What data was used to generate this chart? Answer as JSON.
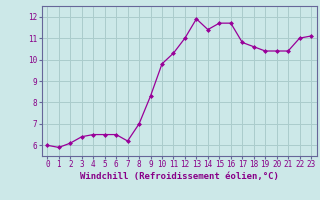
{
  "x": [
    0,
    1,
    2,
    3,
    4,
    5,
    6,
    7,
    8,
    9,
    10,
    11,
    12,
    13,
    14,
    15,
    16,
    17,
    18,
    19,
    20,
    21,
    22,
    23
  ],
  "y": [
    6.0,
    5.9,
    6.1,
    6.4,
    6.5,
    6.5,
    6.5,
    6.2,
    7.0,
    8.3,
    9.8,
    10.3,
    11.0,
    11.9,
    11.4,
    11.7,
    11.7,
    10.8,
    10.6,
    10.4,
    10.4,
    10.4,
    11.0,
    11.1
  ],
  "line_color": "#990099",
  "marker": "D",
  "marker_size": 2.0,
  "bg_color": "#cce8e8",
  "grid_color": "#aacccc",
  "xlabel": "Windchill (Refroidissement éolien,°C)",
  "xlim": [
    -0.5,
    23.5
  ],
  "ylim": [
    5.5,
    12.5
  ],
  "yticks": [
    6,
    7,
    8,
    9,
    10,
    11,
    12
  ],
  "xticks": [
    0,
    1,
    2,
    3,
    4,
    5,
    6,
    7,
    8,
    9,
    10,
    11,
    12,
    13,
    14,
    15,
    16,
    17,
    18,
    19,
    20,
    21,
    22,
    23
  ],
  "tick_color": "#880088",
  "tick_fontsize": 5.5,
  "xlabel_fontsize": 6.5,
  "spine_color": "#666699",
  "linewidth": 0.9
}
